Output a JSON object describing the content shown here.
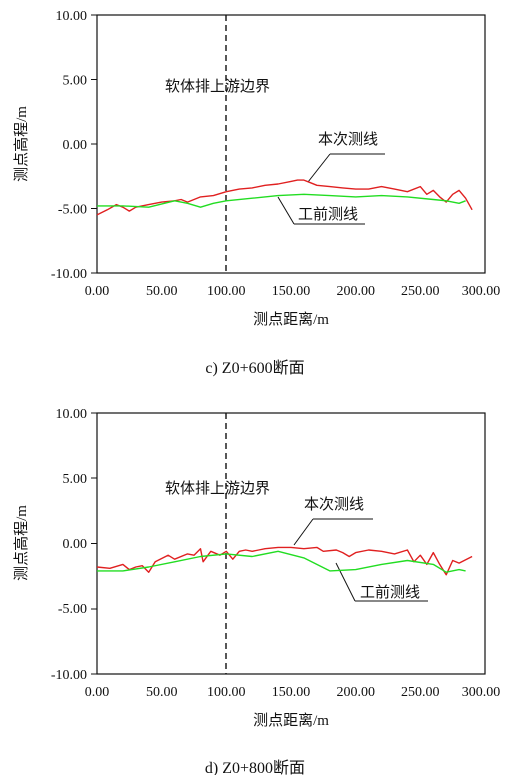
{
  "charts": [
    {
      "caption": "c) Z0+600断面",
      "ylabel": "测点高程/m",
      "xlabel": "测点距离/m",
      "boundary_label": "软体排上游边界",
      "series_labels": {
        "current": "本次测线",
        "pre": "工前测线"
      },
      "xticks": [
        "0.00",
        "50.00",
        "100.00",
        "150.00",
        "200.00",
        "250.00",
        "300.00"
      ],
      "yticks": [
        "10.00",
        "5.00",
        "0.00",
        "-5.00",
        "-10.00"
      ]
    },
    {
      "caption": "d) Z0+800断面",
      "ylabel": "测点高程/m",
      "xlabel": "测点距离/m",
      "boundary_label": "软体排上游边界",
      "series_labels": {
        "current": "本次测线",
        "pre": "工前测线"
      },
      "xticks": [
        "0.00",
        "50.00",
        "100.00",
        "150.00",
        "200.00",
        "250.00",
        "300.00"
      ],
      "yticks": [
        "10.00",
        "5.00",
        "0.00",
        "-5.00",
        "-10.00"
      ]
    }
  ],
  "chart_data": [
    {
      "type": "line",
      "xlim": [
        0,
        300
      ],
      "ylim": [
        -10,
        10
      ],
      "boundary_x": 100,
      "series": [
        {
          "name": "本次测线",
          "color": "#e02020",
          "x": [
            0,
            8,
            15,
            20,
            25,
            30,
            40,
            50,
            60,
            65,
            70,
            75,
            80,
            90,
            100,
            110,
            120,
            130,
            140,
            150,
            155,
            160,
            165,
            170,
            180,
            190,
            200,
            210,
            220,
            230,
            240,
            250,
            255,
            260,
            265,
            270,
            275,
            280,
            285,
            290
          ],
          "y": [
            -5.5,
            -5.1,
            -4.7,
            -4.9,
            -5.2,
            -4.9,
            -4.7,
            -4.5,
            -4.4,
            -4.3,
            -4.5,
            -4.3,
            -4.1,
            -4.0,
            -3.7,
            -3.5,
            -3.4,
            -3.2,
            -3.1,
            -2.9,
            -2.8,
            -2.8,
            -3.0,
            -3.2,
            -3.3,
            -3.4,
            -3.5,
            -3.5,
            -3.3,
            -3.5,
            -3.7,
            -3.3,
            -3.9,
            -3.6,
            -4.1,
            -4.5,
            -3.9,
            -3.6,
            -4.2,
            -5.1
          ]
        },
        {
          "name": "工前测线",
          "color": "#22dd22",
          "x": [
            0,
            20,
            40,
            60,
            70,
            80,
            90,
            100,
            120,
            140,
            160,
            180,
            200,
            220,
            240,
            260,
            270,
            280,
            285
          ],
          "y": [
            -4.8,
            -4.8,
            -4.9,
            -4.4,
            -4.6,
            -4.9,
            -4.6,
            -4.4,
            -4.2,
            -4.0,
            -3.9,
            -4.0,
            -4.1,
            -4.0,
            -4.1,
            -4.3,
            -4.4,
            -4.6,
            -4.4
          ]
        }
      ]
    },
    {
      "type": "line",
      "xlim": [
        0,
        300
      ],
      "ylim": [
        -10,
        10
      ],
      "boundary_x": 100,
      "series": [
        {
          "name": "本次测线",
          "color": "#e02020",
          "x": [
            0,
            10,
            20,
            25,
            30,
            35,
            40,
            45,
            55,
            60,
            70,
            75,
            80,
            82,
            88,
            95,
            100,
            105,
            110,
            115,
            120,
            125,
            130,
            140,
            150,
            160,
            170,
            175,
            185,
            190,
            195,
            200,
            210,
            220,
            230,
            240,
            245,
            250,
            255,
            260,
            265,
            270,
            275,
            280,
            290
          ],
          "y": [
            -1.8,
            -1.9,
            -1.6,
            -2.0,
            -1.8,
            -1.7,
            -2.2,
            -1.4,
            -0.9,
            -1.2,
            -0.8,
            -0.9,
            -0.4,
            -1.4,
            -0.6,
            -0.9,
            -0.6,
            -1.2,
            -0.6,
            -0.5,
            -0.6,
            -0.5,
            -0.4,
            -0.3,
            -0.3,
            -0.4,
            -0.3,
            -0.6,
            -0.5,
            -0.7,
            -1.0,
            -0.7,
            -0.5,
            -0.6,
            -0.8,
            -0.5,
            -1.4,
            -0.9,
            -1.6,
            -0.7,
            -1.6,
            -2.4,
            -1.3,
            -1.5,
            -1.0
          ]
        },
        {
          "name": "工前测线",
          "color": "#22dd22",
          "x": [
            0,
            20,
            40,
            60,
            80,
            100,
            120,
            140,
            160,
            180,
            200,
            220,
            240,
            260,
            270,
            280,
            285
          ],
          "y": [
            -2.1,
            -2.1,
            -1.8,
            -1.4,
            -1.0,
            -0.8,
            -1.0,
            -0.6,
            -1.1,
            -2.1,
            -2.0,
            -1.6,
            -1.3,
            -1.6,
            -2.2,
            -2.0,
            -2.1
          ]
        }
      ]
    }
  ]
}
